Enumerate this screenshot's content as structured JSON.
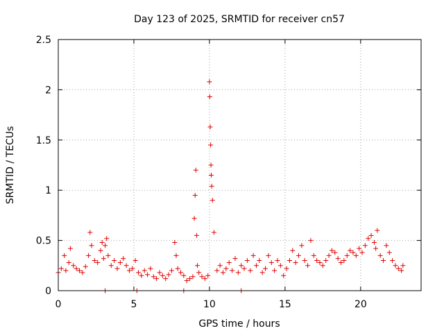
{
  "chart_data": {
    "type": "scatter",
    "title": "Day 123 of 2025, SRMTID for receiver cn57",
    "xlabel": "GPS time / hours",
    "ylabel": "SRMTID / TECUs",
    "xlim": [
      0,
      24
    ],
    "ylim": [
      0,
      2.5
    ],
    "x_ticks": [
      0,
      5,
      10,
      15,
      20
    ],
    "x_tick_labels": [
      "0",
      "5",
      "10",
      "15",
      "20"
    ],
    "y_ticks": [
      0,
      0.5,
      1,
      1.5,
      2,
      2.5
    ],
    "y_tick_labels": [
      "0",
      "0.5",
      "1",
      "1.5",
      "2",
      "2.5"
    ],
    "grid": true,
    "marker": "plus",
    "marker_color": "#e00000",
    "series": [
      {
        "name": "SRMTID",
        "x": [
          0.0,
          0.2,
          0.4,
          0.5,
          0.7,
          0.8,
          1.0,
          1.2,
          1.4,
          1.6,
          1.8,
          2.0,
          2.1,
          2.2,
          2.4,
          2.6,
          2.8,
          2.9,
          3.0,
          3.1,
          3.2,
          3.3,
          3.5,
          3.7,
          3.9,
          4.1,
          4.3,
          4.5,
          4.7,
          4.9,
          5.1,
          5.3,
          5.5,
          5.7,
          5.9,
          6.1,
          6.3,
          6.5,
          6.7,
          6.9,
          7.1,
          7.3,
          7.5,
          7.7,
          7.8,
          7.9,
          8.1,
          8.3,
          8.5,
          8.7,
          8.9,
          9.0,
          9.05,
          9.1,
          9.15,
          9.2,
          9.3,
          9.5,
          9.7,
          9.9,
          10.0,
          10.02,
          10.05,
          10.08,
          10.1,
          10.12,
          10.15,
          10.2,
          10.3,
          10.5,
          10.7,
          10.9,
          11.1,
          11.3,
          11.5,
          11.7,
          11.9,
          12.1,
          12.3,
          12.5,
          12.7,
          12.9,
          13.1,
          13.3,
          13.5,
          13.7,
          13.9,
          14.1,
          14.3,
          14.5,
          14.7,
          14.9,
          15.1,
          15.3,
          15.5,
          15.7,
          15.9,
          16.1,
          16.3,
          16.5,
          16.7,
          16.9,
          17.1,
          17.3,
          17.5,
          17.7,
          17.9,
          18.1,
          18.3,
          18.5,
          18.7,
          18.9,
          19.1,
          19.3,
          19.5,
          19.7,
          19.9,
          20.1,
          20.3,
          20.5,
          20.7,
          20.9,
          21.0,
          21.1,
          21.3,
          21.5,
          21.7,
          21.9,
          22.1,
          22.3,
          22.5,
          22.7,
          22.8,
          3.1,
          5.2,
          8.3,
          12.1
        ],
        "y": [
          0.18,
          0.22,
          0.35,
          0.2,
          0.28,
          0.42,
          0.25,
          0.22,
          0.2,
          0.18,
          0.24,
          0.35,
          0.58,
          0.45,
          0.3,
          0.28,
          0.4,
          0.48,
          0.32,
          0.45,
          0.52,
          0.35,
          0.25,
          0.3,
          0.22,
          0.28,
          0.32,
          0.25,
          0.2,
          0.22,
          0.3,
          0.18,
          0.15,
          0.2,
          0.16,
          0.22,
          0.14,
          0.12,
          0.18,
          0.15,
          0.12,
          0.16,
          0.2,
          0.48,
          0.35,
          0.22,
          0.18,
          0.15,
          0.1,
          0.12,
          0.14,
          0.72,
          0.95,
          1.2,
          0.55,
          0.25,
          0.18,
          0.14,
          0.12,
          0.15,
          2.08,
          1.93,
          1.63,
          1.45,
          1.25,
          1.15,
          1.04,
          0.9,
          0.58,
          0.2,
          0.25,
          0.18,
          0.22,
          0.28,
          0.2,
          0.32,
          0.18,
          0.25,
          0.22,
          0.3,
          0.2,
          0.35,
          0.25,
          0.3,
          0.18,
          0.22,
          0.35,
          0.28,
          0.2,
          0.3,
          0.25,
          0.15,
          0.22,
          0.3,
          0.4,
          0.28,
          0.35,
          0.45,
          0.3,
          0.25,
          0.5,
          0.35,
          0.3,
          0.28,
          0.25,
          0.3,
          0.35,
          0.4,
          0.38,
          0.32,
          0.28,
          0.3,
          0.35,
          0.4,
          0.38,
          0.35,
          0.42,
          0.38,
          0.45,
          0.52,
          0.55,
          0.48,
          0.42,
          0.6,
          0.35,
          0.3,
          0.45,
          0.38,
          0.3,
          0.25,
          0.22,
          0.2,
          0.25,
          0.0,
          0.0,
          0.0,
          0.0
        ]
      }
    ]
  }
}
